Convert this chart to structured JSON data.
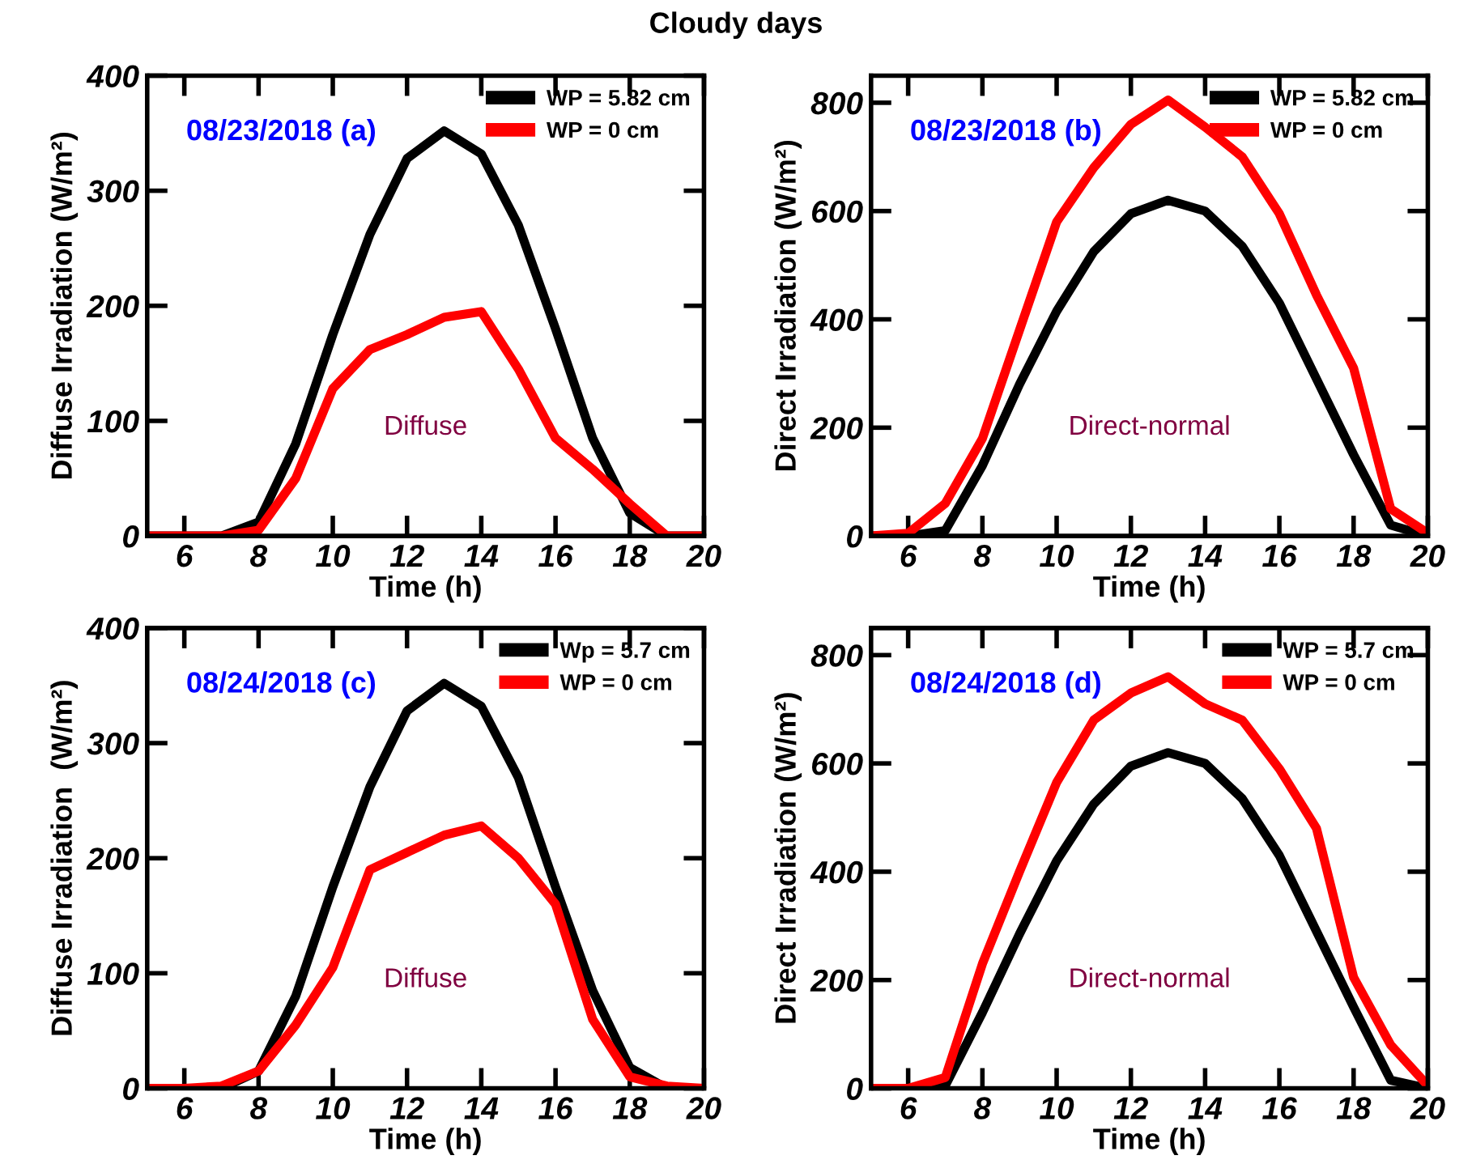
{
  "chart_data": [
    {
      "type": "line",
      "title": "Cloudy days",
      "xlabel": "Time (h)",
      "ylabel": "Diffuse Irradiation (W/m²)",
      "annotations": [
        "08/23/2018 (a)",
        "Diffuse"
      ],
      "x": [
        5,
        6,
        7,
        8,
        9,
        10,
        11,
        12,
        13,
        14,
        15,
        16,
        17,
        18,
        19,
        20
      ],
      "xlim": [
        5,
        20
      ],
      "xticks": [
        6,
        8,
        10,
        12,
        14,
        16,
        18,
        20
      ],
      "ylim": [
        0,
        400
      ],
      "yticks": [
        0,
        100,
        200,
        300,
        400
      ],
      "legend": "top right",
      "grid": false,
      "marker": "none",
      "line_style": "solid",
      "series": [
        {
          "name": "WP = 5.82 cm",
          "color": "#000000",
          "values": [
            0,
            0,
            0,
            12,
            80,
            175,
            262,
            328,
            352,
            332,
            270,
            180,
            85,
            20,
            0,
            0
          ]
        },
        {
          "name": "WP = 0 cm",
          "color": "#ff0000",
          "values": [
            0,
            0,
            0,
            5,
            50,
            128,
            162,
            175,
            190,
            195,
            145,
            85,
            58,
            28,
            0,
            0
          ]
        }
      ]
    },
    {
      "type": "line",
      "xlabel": "Time (h)",
      "ylabel": "Direct Irradiation (W/m²)",
      "annotations": [
        "08/23/2018 (b)",
        "Direct-normal"
      ],
      "x": [
        5,
        6,
        7,
        8,
        9,
        10,
        11,
        12,
        13,
        14,
        15,
        16,
        17,
        18,
        19,
        20
      ],
      "xlim": [
        5,
        20
      ],
      "xticks": [
        6,
        8,
        10,
        12,
        14,
        16,
        18,
        20
      ],
      "ylim": [
        0,
        850
      ],
      "yticks": [
        0,
        200,
        400,
        600,
        800
      ],
      "legend": "top right",
      "grid": false,
      "marker": "none",
      "line_style": "solid",
      "series": [
        {
          "name": "WP = 5.82 cm",
          "color": "#000000",
          "values": [
            0,
            0,
            10,
            130,
            280,
            415,
            525,
            595,
            620,
            600,
            535,
            430,
            290,
            150,
            20,
            0
          ]
        },
        {
          "name": "WP = 0 cm",
          "color": "#ff0000",
          "values": [
            0,
            5,
            60,
            180,
            380,
            580,
            680,
            760,
            805,
            755,
            700,
            595,
            445,
            310,
            50,
            5
          ]
        }
      ]
    },
    {
      "type": "line",
      "xlabel": "Time (h)",
      "ylabel": "Diffuse Irradiation  (W/m²)",
      "annotations": [
        "08/24/2018 (c)",
        "Diffuse"
      ],
      "x": [
        5,
        6,
        7,
        8,
        9,
        10,
        11,
        12,
        13,
        14,
        15,
        16,
        17,
        18,
        19,
        20
      ],
      "xlim": [
        5,
        20
      ],
      "xticks": [
        6,
        8,
        10,
        12,
        14,
        16,
        18,
        20
      ],
      "ylim": [
        0,
        400
      ],
      "yticks": [
        0,
        100,
        200,
        300,
        400
      ],
      "legend": "top right",
      "grid": false,
      "marker": "none",
      "line_style": "solid",
      "series": [
        {
          "name": "Wp = 5.7 cm",
          "color": "#000000",
          "values": [
            0,
            0,
            0,
            15,
            80,
            175,
            262,
            328,
            352,
            332,
            270,
            175,
            85,
            18,
            0,
            0
          ]
        },
        {
          "name": "WP = 0 cm",
          "color": "#ff0000",
          "values": [
            0,
            0,
            2,
            15,
            55,
            105,
            190,
            205,
            220,
            228,
            200,
            160,
            60,
            10,
            2,
            0
          ]
        }
      ]
    },
    {
      "type": "line",
      "xlabel": "Time (h)",
      "ylabel": "Direct Irradiation (W/m²)",
      "annotations": [
        "08/24/2018 (d)",
        "Direct-normal"
      ],
      "x": [
        5,
        6,
        7,
        8,
        9,
        10,
        11,
        12,
        13,
        14,
        15,
        16,
        17,
        18,
        19,
        20
      ],
      "xlim": [
        5,
        20
      ],
      "xticks": [
        6,
        8,
        10,
        12,
        14,
        16,
        18,
        20
      ],
      "ylim": [
        0,
        850
      ],
      "yticks": [
        0,
        200,
        400,
        600,
        800
      ],
      "legend": "top right",
      "grid": false,
      "marker": "none",
      "line_style": "solid",
      "series": [
        {
          "name": "WP = 5.7 cm",
          "color": "#000000",
          "values": [
            0,
            0,
            5,
            140,
            285,
            420,
            525,
            595,
            620,
            600,
            535,
            430,
            290,
            150,
            15,
            0
          ]
        },
        {
          "name": "WP = 0 cm",
          "color": "#ff0000",
          "values": [
            0,
            0,
            20,
            230,
            400,
            565,
            680,
            730,
            760,
            710,
            680,
            590,
            480,
            205,
            80,
            5
          ]
        }
      ]
    }
  ]
}
